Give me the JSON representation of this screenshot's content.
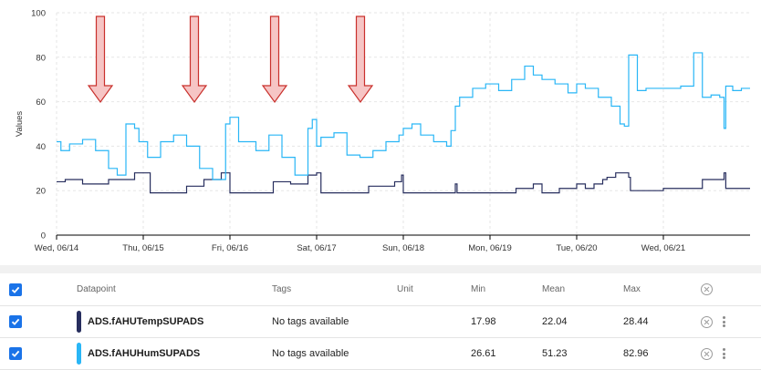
{
  "chart_data": {
    "type": "line",
    "ylabel": "Values",
    "ylim": [
      0,
      100
    ],
    "yticks": [
      "0",
      "20",
      "40",
      "60",
      "80",
      "100"
    ],
    "x_tick_labels": [
      "Wed, 06/14",
      "Thu, 06/15",
      "Fri, 06/16",
      "Sat, 06/17",
      "Sun, 06/18",
      "Mon, 06/19",
      "Tue, 06/20",
      "Wed, 06/21"
    ],
    "x_unit": "days since Wed 06/14 00:00",
    "xlim": [
      0,
      8.0
    ],
    "series": [
      {
        "name": "ADS.fAHUTempSUPADS",
        "color": "#272e5e",
        "x": [
          0.0,
          0.1,
          0.3,
          0.6,
          0.9,
          1.05,
          1.08,
          1.2,
          1.5,
          1.7,
          1.9,
          2.0,
          2.0,
          2.05,
          2.2,
          2.5,
          2.7,
          2.9,
          3.0,
          3.05,
          3.15,
          3.3,
          3.6,
          3.9,
          3.98,
          4.0,
          4.1,
          4.4,
          4.6,
          4.62,
          4.9,
          5.1,
          5.3,
          5.5,
          5.6,
          5.8,
          6.0,
          6.1,
          6.2,
          6.3,
          6.35,
          6.45,
          6.6,
          6.62,
          6.7,
          7.0,
          7.2,
          7.4,
          7.45,
          7.6,
          7.7,
          7.72,
          7.95
        ],
        "values": [
          24,
          25,
          23,
          25,
          28,
          28,
          19,
          19,
          22,
          25,
          28,
          27,
          19,
          19,
          19,
          24,
          23,
          27,
          28,
          19,
          19,
          19,
          22,
          24,
          27,
          19,
          19,
          19,
          23,
          19,
          19,
          19,
          21,
          23,
          19,
          21,
          23,
          21,
          23,
          25,
          26,
          28,
          26,
          20,
          20,
          21,
          21,
          21,
          25,
          25,
          28,
          21,
          21
        ]
      },
      {
        "name": "ADS.fAHUHumSUPADS",
        "color": "#29b6f6",
        "x": [
          0.0,
          0.05,
          0.15,
          0.3,
          0.45,
          0.6,
          0.7,
          0.8,
          0.9,
          0.95,
          1.05,
          1.2,
          1.35,
          1.5,
          1.65,
          1.8,
          1.95,
          2.0,
          2.1,
          2.3,
          2.45,
          2.6,
          2.75,
          2.9,
          2.95,
          3.0,
          3.05,
          3.2,
          3.35,
          3.5,
          3.65,
          3.8,
          3.95,
          4.0,
          4.1,
          4.2,
          4.35,
          4.5,
          4.55,
          4.6,
          4.65,
          4.8,
          4.95,
          5.1,
          5.25,
          5.4,
          5.5,
          5.6,
          5.75,
          5.9,
          6.0,
          6.1,
          6.25,
          6.4,
          6.5,
          6.55,
          6.6,
          6.7,
          6.8,
          6.9,
          7.0,
          7.1,
          7.2,
          7.3,
          7.35,
          7.45,
          7.5,
          7.55,
          7.65,
          7.7,
          7.72,
          7.8,
          7.9,
          7.95
        ],
        "values": [
          42,
          38,
          41,
          43,
          38,
          30,
          27,
          50,
          48,
          42,
          35,
          42,
          45,
          40,
          30,
          25,
          50,
          53,
          42,
          38,
          45,
          35,
          27,
          48,
          52,
          40,
          44,
          46,
          36,
          35,
          38,
          42,
          45,
          48,
          50,
          45,
          42,
          40,
          47,
          58,
          62,
          66,
          68,
          65,
          70,
          76,
          72,
          70,
          68,
          64,
          68,
          66,
          62,
          58,
          50,
          49,
          81,
          65,
          66,
          66,
          66,
          66,
          67,
          67,
          82,
          62,
          62,
          63,
          62,
          48,
          67,
          65,
          66,
          66
        ]
      }
    ]
  },
  "arrows": 4,
  "table": {
    "headers": {
      "datapoint": "Datapoint",
      "tags": "Tags",
      "unit": "Unit",
      "min": "Min",
      "mean": "Mean",
      "max": "Max"
    },
    "rows": [
      {
        "name": "ADS.fAHUTempSUPADS",
        "color": "#272e5e",
        "tags": "No tags available",
        "unit": "",
        "min": "17.98",
        "mean": "22.04",
        "max": "28.44"
      },
      {
        "name": "ADS.fAHUHumSUPADS",
        "color": "#29b6f6",
        "tags": "No tags available",
        "unit": "",
        "min": "26.61",
        "mean": "51.23",
        "max": "82.96"
      }
    ]
  },
  "colors": {
    "checkbox": "#1a73e8",
    "arrow_fill": "#f6c5c5",
    "arrow_stroke": "#c9302c"
  }
}
